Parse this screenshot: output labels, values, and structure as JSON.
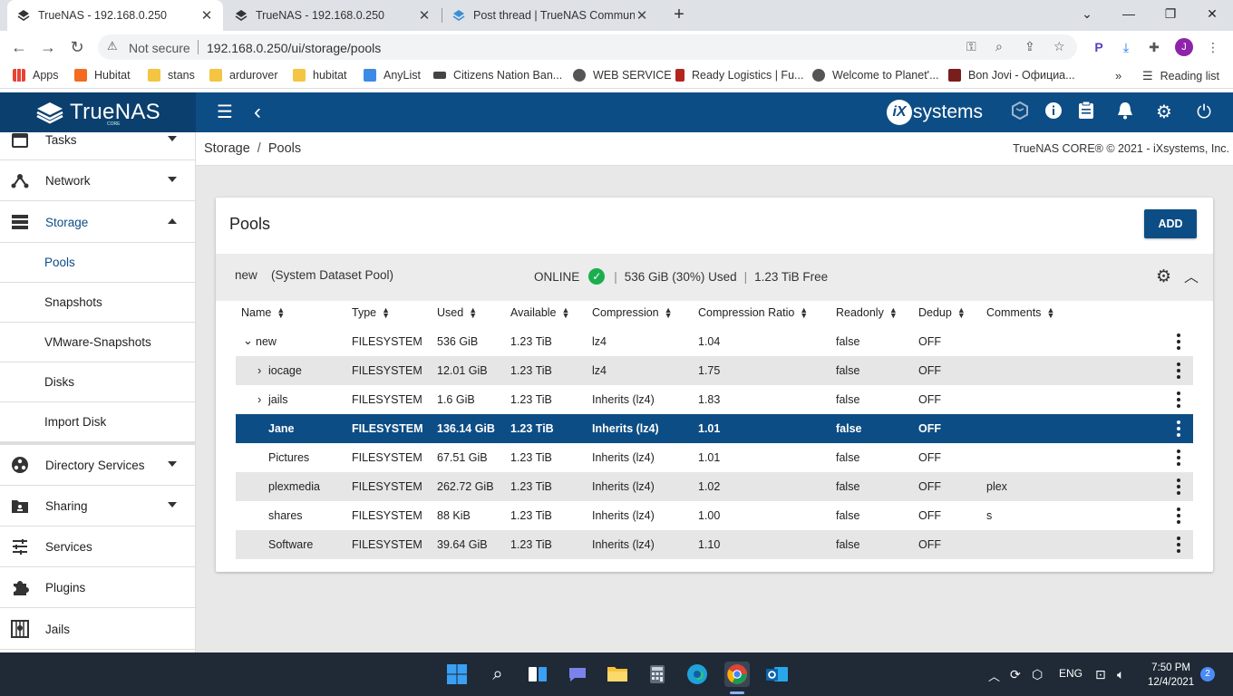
{
  "browser": {
    "tabs": [
      {
        "title": "TrueNAS - 192.168.0.250",
        "active": true
      },
      {
        "title": "TrueNAS - 192.168.0.250",
        "active": false
      },
      {
        "title": "Post thread | TrueNAS Communit",
        "active": false
      }
    ],
    "not_secure": "Not secure",
    "url": "192.168.0.250/ui/storage/pools",
    "profile_initial": "J",
    "bookmarks": [
      "Apps",
      "Hubitat",
      "stans",
      "ardurover",
      "hubitat",
      "AnyList",
      "Citizens Nation Ban...",
      "WEB SERVICE",
      "Ready Logistics | Fu...",
      "Welcome to Planet'...",
      "Bon Jovi - Официа..."
    ],
    "reading_list": "Reading list",
    "more": "»"
  },
  "header": {
    "brand": "TrueNAS",
    "brand_sub": "CORE",
    "vendor": "systems",
    "vendor_badge": "iX"
  },
  "sidebar": {
    "items": [
      {
        "label": "Tasks",
        "icon": "calendar-icon"
      },
      {
        "label": "Network",
        "icon": "network-icon"
      },
      {
        "label": "Storage",
        "icon": "storage-icon"
      },
      {
        "label": "Directory Services",
        "icon": "directory-icon"
      },
      {
        "label": "Sharing",
        "icon": "sharing-icon"
      },
      {
        "label": "Services",
        "icon": "sliders-icon"
      },
      {
        "label": "Plugins",
        "icon": "puzzle-icon"
      },
      {
        "label": "Jails",
        "icon": "jail-icon"
      }
    ],
    "storage_sub": [
      "Pools",
      "Snapshots",
      "VMware-Snapshots",
      "Disks",
      "Import Disk"
    ]
  },
  "breadcrumb": {
    "root": "Storage",
    "sep": "/",
    "current": "Pools"
  },
  "copyright": "TrueNAS CORE® © 2021 - iXsystems, Inc.",
  "pools": {
    "title": "Pools",
    "add_label": "ADD",
    "pool": {
      "name": "new",
      "desc": "(System Dataset Pool)",
      "status": "ONLINE",
      "used": "536 GiB (30%) Used",
      "free": "1.23 TiB Free"
    },
    "columns": [
      "Name",
      "Type",
      "Used",
      "Available",
      "Compression",
      "Compression Ratio",
      "Readonly",
      "Dedup",
      "Comments"
    ],
    "rows": [
      {
        "name": "new",
        "type": "FILESYSTEM",
        "used": "536 GiB",
        "available": "1.23 TiB",
        "compression": "lz4",
        "ratio": "1.04",
        "readonly": "false",
        "dedup": "OFF",
        "comments": ""
      },
      {
        "name": "iocage",
        "type": "FILESYSTEM",
        "used": "12.01 GiB",
        "available": "1.23 TiB",
        "compression": "lz4",
        "ratio": "1.75",
        "readonly": "false",
        "dedup": "OFF",
        "comments": ""
      },
      {
        "name": "jails",
        "type": "FILESYSTEM",
        "used": "1.6 GiB",
        "available": "1.23 TiB",
        "compression": "Inherits (lz4)",
        "ratio": "1.83",
        "readonly": "false",
        "dedup": "OFF",
        "comments": ""
      },
      {
        "name": "Jane",
        "type": "FILESYSTEM",
        "used": "136.14 GiB",
        "available": "1.23 TiB",
        "compression": "Inherits (lz4)",
        "ratio": "1.01",
        "readonly": "false",
        "dedup": "OFF",
        "comments": ""
      },
      {
        "name": "Pictures",
        "type": "FILESYSTEM",
        "used": "67.51 GiB",
        "available": "1.23 TiB",
        "compression": "Inherits (lz4)",
        "ratio": "1.01",
        "readonly": "false",
        "dedup": "OFF",
        "comments": ""
      },
      {
        "name": "plexmedia",
        "type": "FILESYSTEM",
        "used": "262.72 GiB",
        "available": "1.23 TiB",
        "compression": "Inherits (lz4)",
        "ratio": "1.02",
        "readonly": "false",
        "dedup": "OFF",
        "comments": "plex"
      },
      {
        "name": "shares",
        "type": "FILESYSTEM",
        "used": "88 KiB",
        "available": "1.23 TiB",
        "compression": "Inherits (lz4)",
        "ratio": "1.00",
        "readonly": "false",
        "dedup": "OFF",
        "comments": "s"
      },
      {
        "name": "Software",
        "type": "FILESYSTEM",
        "used": "39.64 GiB",
        "available": "1.23 TiB",
        "compression": "Inherits (lz4)",
        "ratio": "1.10",
        "readonly": "false",
        "dedup": "OFF",
        "comments": ""
      }
    ]
  },
  "taskbar": {
    "lang": "ENG",
    "time": "7:50 PM",
    "date": "12/4/2021",
    "notifications": "2"
  }
}
